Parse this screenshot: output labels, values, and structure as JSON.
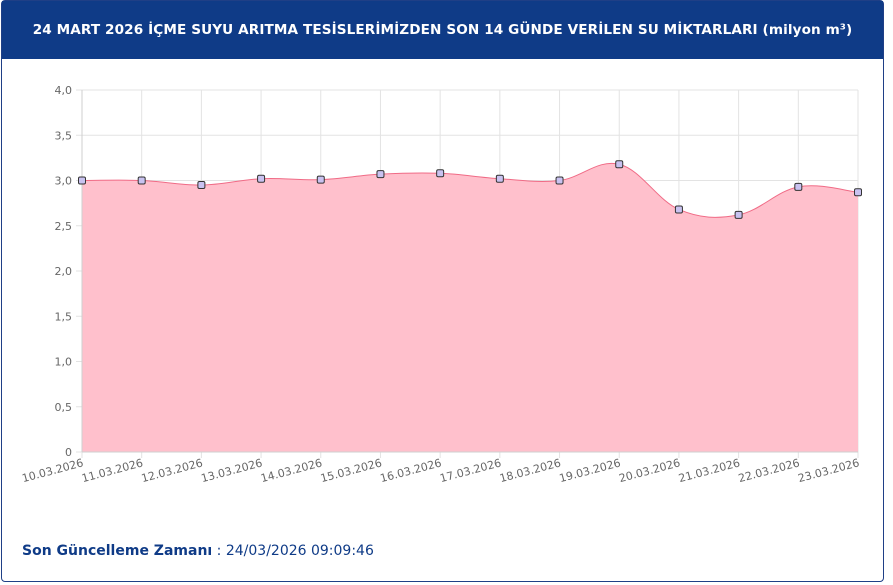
{
  "header": {
    "title": "24 MART 2026 İÇME SUYU ARITMA TESİSLERİMİZDEN SON 14 GÜNDE VERİLEN SU MİKTARLARI (milyon m³)"
  },
  "chart_data": {
    "type": "area",
    "categories": [
      "10.03.2026",
      "11.03.2026",
      "12.03.2026",
      "13.03.2026",
      "14.03.2026",
      "15.03.2026",
      "16.03.2026",
      "17.03.2026",
      "18.03.2026",
      "19.03.2026",
      "20.03.2026",
      "21.03.2026",
      "22.03.2026",
      "23.03.2026"
    ],
    "values": [
      3.0,
      3.0,
      2.95,
      3.02,
      3.01,
      3.07,
      3.08,
      3.02,
      3.0,
      3.18,
      2.68,
      2.62,
      2.93,
      2.87
    ],
    "ylim": [
      0,
      4
    ],
    "yticks": [
      "0",
      "0,5",
      "1,0",
      "1,5",
      "2,0",
      "2,5",
      "3,0",
      "3,5",
      "4,0"
    ],
    "grid": true,
    "colors": {
      "fill": "#ffc0cc",
      "line": "#f06b86",
      "point_fill": "#c9c2f0",
      "point_stroke": "#333333"
    }
  },
  "footer": {
    "label": "Son Güncelleme Zamanı",
    "separator": " : ",
    "timestamp": "24/03/2026 09:09:46"
  }
}
